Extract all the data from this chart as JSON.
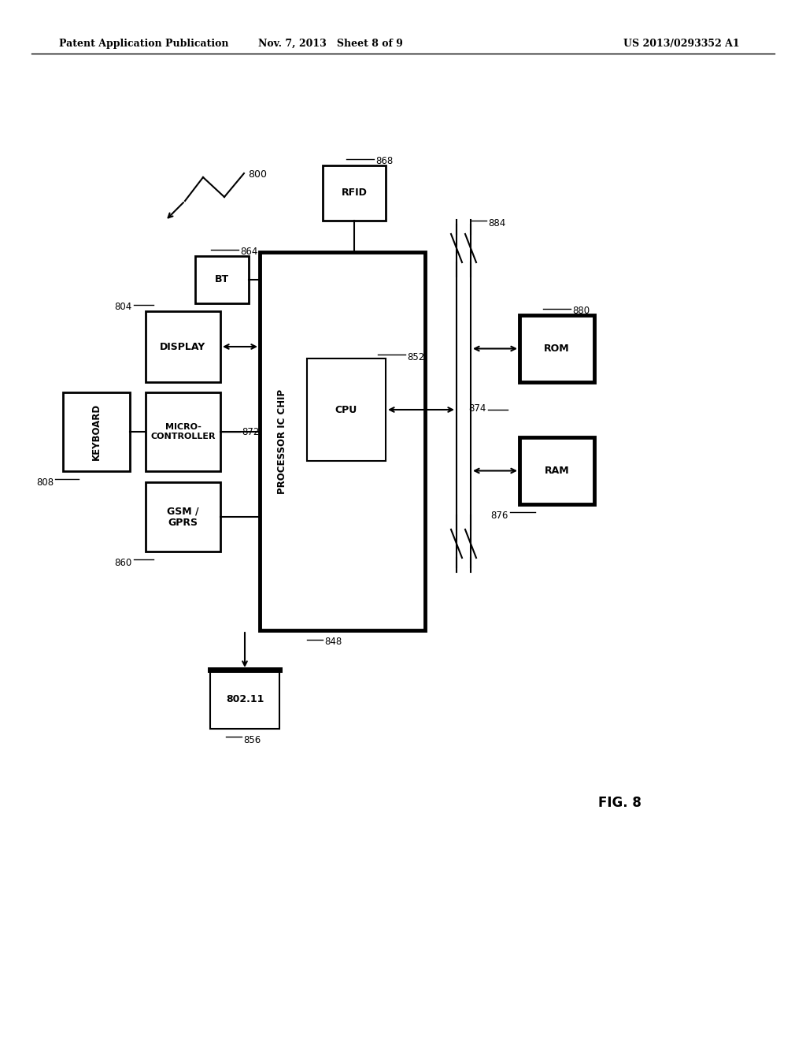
{
  "bg_color": "#ffffff",
  "header_left": "Patent Application Publication",
  "header_center": "Nov. 7, 2013   Sheet 8 of 9",
  "header_right": "US 2013/0293352 A1",
  "fig_label": "FIG. 8"
}
